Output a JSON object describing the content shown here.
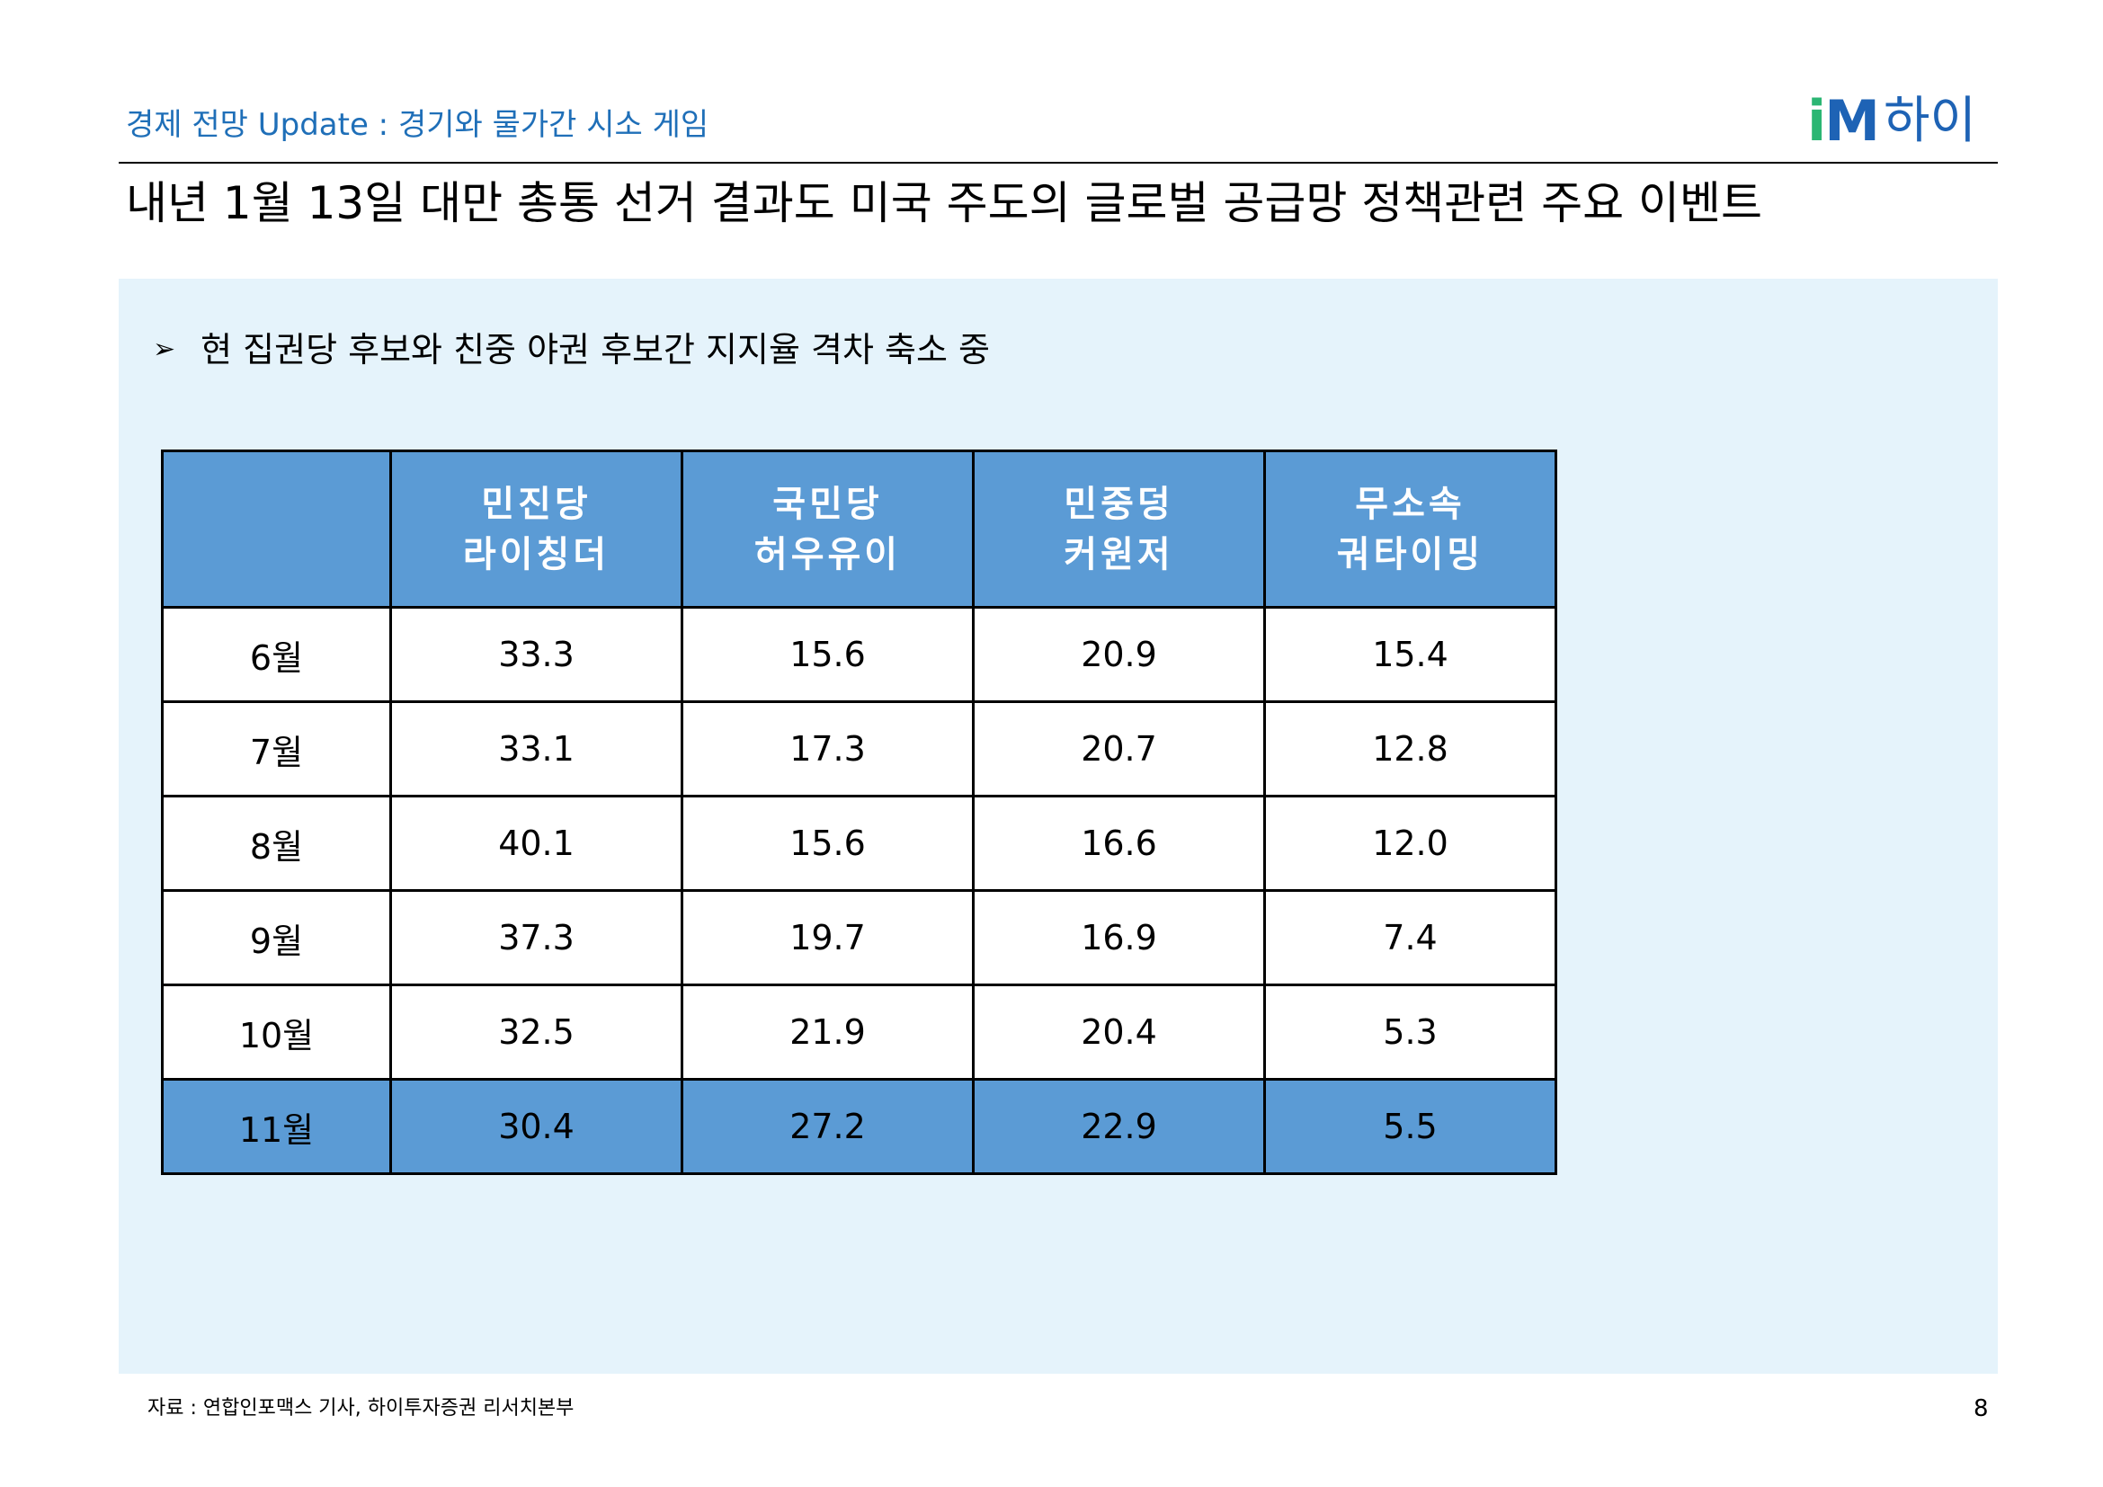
{
  "header": {
    "subtitle": "경제 전망 Update : 경기와 물가간 시소 게임",
    "logo": {
      "i": "i",
      "m": "M",
      "hi": "하이"
    },
    "title": "내년 1월 13일 대만 총통 선거 결과도 미국 주도의 글로벌 공급망 정책관련 주요 이벤트"
  },
  "panel": {
    "bullet_icon": "arrowhead-bullet-icon",
    "bullet_glyph": "➢",
    "bullet_text": "현 집권당 후보와 친중 야권 후보간 지지율 격차 축소 중"
  },
  "table": {
    "columns": [
      {
        "party": "",
        "candidate": ""
      },
      {
        "party": "민진당",
        "candidate": "라이칭더"
      },
      {
        "party": "국민당",
        "candidate": "허우유이"
      },
      {
        "party": "민중덩",
        "candidate": "커원저"
      },
      {
        "party": "무소속",
        "candidate": "궈타이밍"
      }
    ],
    "rows": [
      {
        "month": "6월",
        "values": [
          "33.3",
          "15.6",
          "20.9",
          "15.4"
        ]
      },
      {
        "month": "7월",
        "values": [
          "33.1",
          "17.3",
          "20.7",
          "12.8"
        ]
      },
      {
        "month": "8월",
        "values": [
          "40.1",
          "15.6",
          "16.6",
          "12.0"
        ]
      },
      {
        "month": "9월",
        "values": [
          "37.3",
          "19.7",
          "16.9",
          "7.4"
        ]
      },
      {
        "month": "10월",
        "values": [
          "32.5",
          "21.9",
          "20.4",
          "5.3"
        ]
      },
      {
        "month": "11월",
        "values": [
          "30.4",
          "27.2",
          "22.9",
          "5.5"
        ]
      }
    ],
    "header_color": "#5b9bd5",
    "highlight_row_color": "#5b9bd5"
  },
  "footer": {
    "source": "자료 : 연합인포맥스 기사, 하이투자증권 리서치본부",
    "page_number": "8"
  }
}
